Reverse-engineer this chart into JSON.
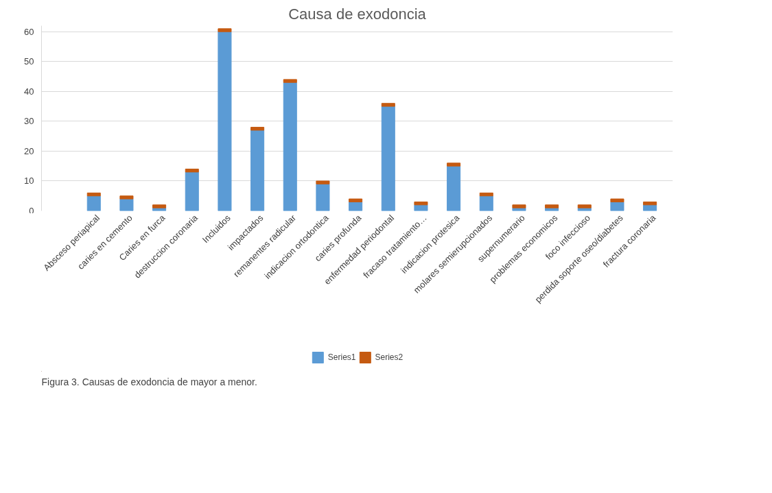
{
  "chart_data": {
    "type": "bar",
    "title": "Causa de exodoncia",
    "stacked": true,
    "categories": [
      "Absceso periapical",
      "caries en cemento",
      "Caries en furca",
      "destruccion coronaria",
      "Incluidos",
      "impactados",
      "remanentes radicular",
      "indicacion ortodontica",
      "caries profunda",
      "enfermedad periodontal",
      "fracaso tratamiento…",
      "indicacion protesica",
      "molares semierupcionados",
      "supernumerario",
      "problemas economicos",
      "foco infeccioso",
      "perdida soporte oseo/diabetes",
      "fractura coronaria"
    ],
    "series": [
      {
        "name": "Series1",
        "color": "#5b9bd5",
        "values": [
          5,
          4,
          1,
          13,
          60,
          27,
          43,
          9,
          3,
          35,
          2,
          15,
          5,
          1,
          1,
          1,
          3,
          2
        ]
      },
      {
        "name": "Series2",
        "color": "#c55a11",
        "values": [
          1,
          1,
          1,
          1,
          1,
          1,
          1,
          1,
          1,
          1,
          1,
          1,
          1,
          1,
          1,
          1,
          1,
          1
        ]
      }
    ],
    "ylim": [
      0,
      62
    ],
    "yticks": [
      0,
      10,
      20,
      30,
      40,
      50,
      60
    ],
    "grid": "y",
    "legend": "bottom",
    "annotations": [
      "Figura 3. Causas de exodoncia de mayor a menor."
    ]
  }
}
